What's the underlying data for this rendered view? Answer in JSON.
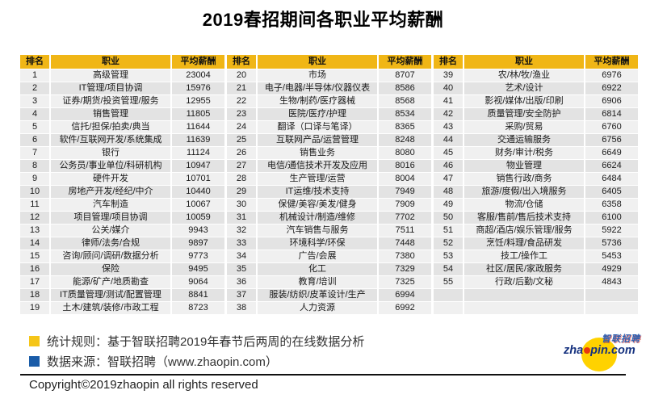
{
  "title": "2019春招期间各职业平均薪酬",
  "chart_data": {
    "type": "table",
    "title": "2019春招期间各职业平均薪酬",
    "headers": [
      "排名",
      "职业",
      "平均薪酬"
    ],
    "header_repeats": 3,
    "rows_per_column": 19,
    "columns": [
      {
        "rows": [
          [
            1,
            "高级管理",
            23004
          ],
          [
            2,
            "IT管理/项目协调",
            15976
          ],
          [
            3,
            "证券/期货/投资管理/服务",
            12955
          ],
          [
            4,
            "销售管理",
            11805
          ],
          [
            5,
            "信托/担保/拍卖/典当",
            11644
          ],
          [
            6,
            "软件/互联网开发/系统集成",
            11639
          ],
          [
            7,
            "银行",
            11124
          ],
          [
            8,
            "公务员/事业单位/科研机构",
            10947
          ],
          [
            9,
            "硬件开发",
            10701
          ],
          [
            10,
            "房地产开发/经纪/中介",
            10440
          ],
          [
            11,
            "汽车制造",
            10067
          ],
          [
            12,
            "项目管理/项目协调",
            10059
          ],
          [
            13,
            "公关/媒介",
            9943
          ],
          [
            14,
            "律师/法务/合规",
            9897
          ],
          [
            15,
            "咨询/顾问/调研/数据分析",
            9773
          ],
          [
            16,
            "保险",
            9495
          ],
          [
            17,
            "能源/矿产/地质勘查",
            9064
          ],
          [
            18,
            "IT质量管理/测试/配置管理",
            8841
          ],
          [
            19,
            "土木/建筑/装修/市政工程",
            8723
          ]
        ]
      },
      {
        "rows": [
          [
            20,
            "市场",
            8707
          ],
          [
            21,
            "电子/电器/半导体/仪器仪表",
            8586
          ],
          [
            22,
            "生物/制药/医疗器械",
            8568
          ],
          [
            23,
            "医院/医疗/护理",
            8534
          ],
          [
            24,
            "翻译（口译与笔译）",
            8365
          ],
          [
            25,
            "互联网产品/运营管理",
            8248
          ],
          [
            26,
            "销售业务",
            8080
          ],
          [
            27,
            "电信/通信技术开发及应用",
            8016
          ],
          [
            28,
            "生产管理/运营",
            8004
          ],
          [
            29,
            "IT运维/技术支持",
            7949
          ],
          [
            30,
            "保健/美容/美发/健身",
            7909
          ],
          [
            31,
            "机械设计/制造/维修",
            7702
          ],
          [
            32,
            "汽车销售与服务",
            7511
          ],
          [
            33,
            "环境科学/环保",
            7448
          ],
          [
            34,
            "广告/会展",
            7380
          ],
          [
            35,
            "化工",
            7329
          ],
          [
            36,
            "教育/培训",
            7325
          ],
          [
            37,
            "服装/纺织/皮革设计/生产",
            6994
          ],
          [
            38,
            "人力资源",
            6992
          ]
        ]
      },
      {
        "rows": [
          [
            39,
            "农/林/牧/渔业",
            6976
          ],
          [
            40,
            "艺术/设计",
            6922
          ],
          [
            41,
            "影视/媒体/出版/印刷",
            6906
          ],
          [
            42,
            "质量管理/安全防护",
            6814
          ],
          [
            43,
            "采购/贸易",
            6760
          ],
          [
            44,
            "交通运输服务",
            6756
          ],
          [
            45,
            "财务/审计/税务",
            6649
          ],
          [
            46,
            "物业管理",
            6624
          ],
          [
            47,
            "销售行政/商务",
            6484
          ],
          [
            48,
            "旅游/度假/出入境服务",
            6405
          ],
          [
            49,
            "物流/仓储",
            6358
          ],
          [
            50,
            "客服/售前/售后技术支持",
            6100
          ],
          [
            51,
            "商超/酒店/娱乐管理/服务",
            5922
          ],
          [
            52,
            "烹饪/料理/食品研发",
            5736
          ],
          [
            53,
            "技工/操作工",
            5453
          ],
          [
            54,
            "社区/居民/家政服务",
            4929
          ],
          [
            55,
            "行政/后勤/文秘",
            4843
          ]
        ]
      }
    ]
  },
  "footer": {
    "note1": "统计规则：基于智联招聘2019年春节后两周的在线数据分析",
    "note2": "数据来源：智联招聘（www.zhaopin.com）",
    "copyright": "Copyright©2019zhaopin all rights reserved"
  },
  "logo": {
    "brand_cn": "智联招聘",
    "brand_en_left": "zha",
    "brand_en_right": "pin.com"
  },
  "colors": {
    "header_bg": "#F0B616",
    "row_odd": "#F0F0F0",
    "row_even": "#E3E3E3",
    "accent_yellow": "#F5C518",
    "accent_blue": "#1A5CA8",
    "logo_yellow": "#FFD200",
    "logo_blue": "#16327F",
    "logo_blue_light": "#2B5FB0",
    "logo_red": "#E8380D"
  }
}
